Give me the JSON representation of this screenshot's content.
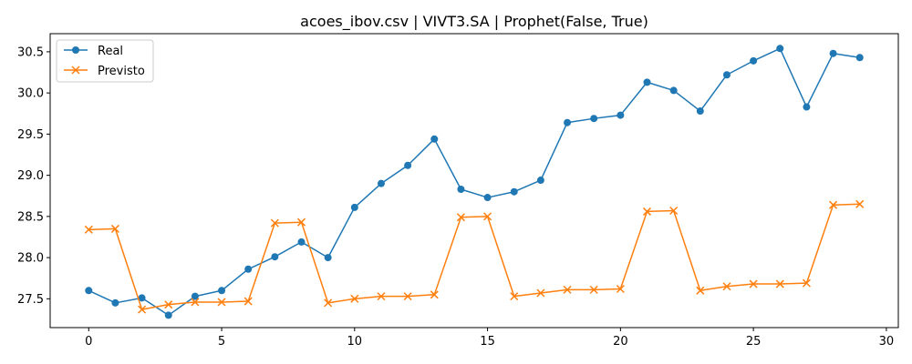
{
  "chart_data": {
    "type": "line",
    "title": "acoes_ibov.csv | VIVT3.SA | Prophet(False, True)",
    "xlabel": "",
    "ylabel": "",
    "xlim": [
      -1.45,
      30.45
    ],
    "ylim": [
      27.15,
      30.72
    ],
    "x_ticks": [
      0,
      5,
      10,
      15,
      20,
      25,
      30
    ],
    "x_tick_labels": [
      "0",
      "5",
      "10",
      "15",
      "20",
      "25",
      "30"
    ],
    "y_ticks": [
      27.5,
      28.0,
      28.5,
      29.0,
      29.5,
      30.0,
      30.5
    ],
    "y_tick_labels": [
      "27.5",
      "28.0",
      "28.5",
      "29.0",
      "29.5",
      "30.0",
      "30.5"
    ],
    "grid": false,
    "legend_position": "upper-left",
    "x": [
      0,
      1,
      2,
      3,
      4,
      5,
      6,
      7,
      8,
      9,
      10,
      11,
      12,
      13,
      14,
      15,
      16,
      17,
      18,
      19,
      20,
      21,
      22,
      23,
      24,
      25,
      26,
      27,
      28,
      29
    ],
    "series": [
      {
        "name": "Real",
        "color": "#1f77b4",
        "marker": "circle",
        "values": [
          27.6,
          27.45,
          27.51,
          27.3,
          27.53,
          27.6,
          27.86,
          28.01,
          28.19,
          28.0,
          28.61,
          28.9,
          29.12,
          29.44,
          28.83,
          28.73,
          28.8,
          28.94,
          29.64,
          29.69,
          29.73,
          30.13,
          30.03,
          29.78,
          30.22,
          30.39,
          30.54,
          29.83,
          30.48,
          30.43
        ]
      },
      {
        "name": "Previsto",
        "color": "#ff7f0e",
        "marker": "x",
        "values": [
          28.34,
          28.35,
          27.37,
          27.43,
          27.46,
          27.46,
          27.47,
          28.42,
          28.43,
          27.45,
          27.5,
          27.53,
          27.53,
          27.55,
          28.49,
          28.5,
          27.53,
          27.57,
          27.61,
          27.61,
          27.62,
          28.56,
          28.57,
          27.6,
          27.65,
          27.68,
          27.68,
          27.69,
          28.64,
          28.65
        ]
      }
    ]
  }
}
